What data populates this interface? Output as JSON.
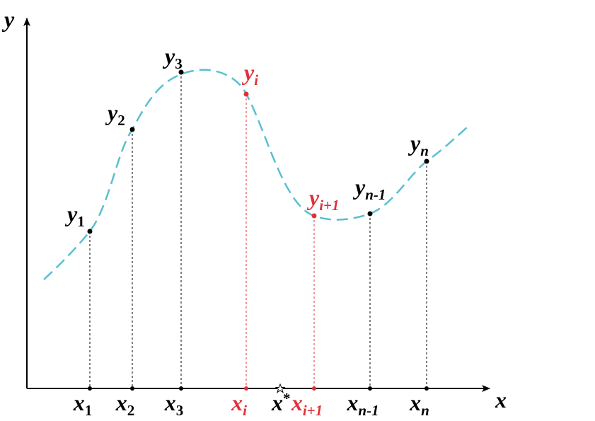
{
  "axes": {
    "x_label": "x",
    "y_label": "y"
  },
  "points": [
    {
      "x": {
        "base": "x",
        "sub": "1"
      },
      "y": {
        "base": "y",
        "sub": "1"
      },
      "highlight": false
    },
    {
      "x": {
        "base": "x",
        "sub": "2"
      },
      "y": {
        "base": "y",
        "sub": "2"
      },
      "highlight": false
    },
    {
      "x": {
        "base": "x",
        "sub": "3"
      },
      "y": {
        "base": "y",
        "sub": "3"
      },
      "highlight": false
    },
    {
      "x": {
        "base": "x",
        "sub": "i"
      },
      "y": {
        "base": "y",
        "sub": "i"
      },
      "highlight": true
    },
    {
      "x": {
        "base": "x",
        "sub": "i+1"
      },
      "y": {
        "base": "y",
        "sub": "i+1"
      },
      "highlight": true
    },
    {
      "x": {
        "base": "x",
        "sub": "n-1"
      },
      "y": {
        "base": "y",
        "sub": "n-1"
      },
      "highlight": false
    },
    {
      "x": {
        "base": "x",
        "sub": "n"
      },
      "y": {
        "base": "y",
        "sub": "n"
      },
      "highlight": false
    }
  ],
  "query": {
    "base": "x",
    "mark": "*"
  }
}
